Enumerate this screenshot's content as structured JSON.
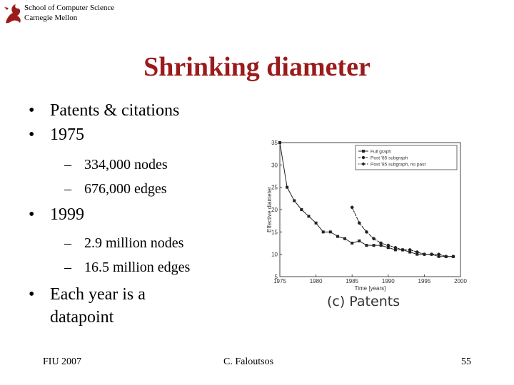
{
  "header": {
    "school_line1": "School of Computer Science",
    "school_line2": "Carnegie Mellon"
  },
  "slide": {
    "title": "Shrinking diameter",
    "bullets": [
      {
        "text": "Patents & citations"
      },
      {
        "text": "1975"
      },
      {
        "text": "334,000 nodes"
      },
      {
        "text": "676,000 edges"
      },
      {
        "text": "1999"
      },
      {
        "text": "2.9 million nodes"
      },
      {
        "text": "16.5 million edges"
      },
      {
        "text": "Each year is a"
      },
      {
        "text": "datapoint"
      }
    ],
    "caption": "(c) Patents"
  },
  "footer": {
    "left": "FIU 2007",
    "center": "C. Faloutsos",
    "page": "55"
  },
  "colors": {
    "title": "#9b1b1b",
    "series": "#222222"
  },
  "chart_data": {
    "type": "line",
    "xlabel": "Time [years]",
    "ylabel": "Effective diameter",
    "xlim": [
      1975,
      2000
    ],
    "ylim": [
      5,
      35
    ],
    "xticks": [
      1975,
      1980,
      1985,
      1990,
      1995,
      2000
    ],
    "yticks": [
      5,
      10,
      15,
      20,
      25,
      30,
      35
    ],
    "legend_position": "top-right",
    "series": [
      {
        "name": "Full graph",
        "marker": "square",
        "x": [
          1975,
          1976,
          1977,
          1978,
          1979,
          1980,
          1981,
          1982,
          1983,
          1984,
          1985,
          1986,
          1987,
          1988,
          1989,
          1990,
          1991,
          1992,
          1993,
          1994,
          1995,
          1996,
          1997,
          1998,
          1999
        ],
        "y": [
          35,
          25,
          22,
          20,
          18.5,
          17,
          15,
          15,
          14,
          13.5,
          12.5,
          13,
          12,
          12,
          12,
          11.5,
          11,
          11,
          10.5,
          10,
          10,
          10,
          9.5,
          9.5,
          9.5
        ]
      },
      {
        "name": "Post '85 subgraph",
        "marker": "circle",
        "x": [
          1985,
          1986,
          1987,
          1988,
          1989,
          1990,
          1991,
          1992,
          1993,
          1994,
          1995,
          1996,
          1997,
          1998,
          1999
        ],
        "y": [
          20.5,
          17,
          15,
          13.5,
          12.5,
          12,
          11.5,
          11,
          11,
          10.5,
          10,
          10,
          10,
          9.5,
          9.5
        ]
      },
      {
        "name": "Post '85 subgraph, no past",
        "marker": "diamond",
        "x": [
          1985,
          1986,
          1987,
          1988,
          1989,
          1990,
          1991,
          1992,
          1993,
          1994,
          1995,
          1996,
          1997,
          1998,
          1999
        ],
        "y": [
          20.5,
          17,
          15,
          13.5,
          12.5,
          12,
          11.5,
          11,
          11,
          10.5,
          10,
          10,
          10,
          9.5,
          9.5
        ]
      }
    ]
  }
}
